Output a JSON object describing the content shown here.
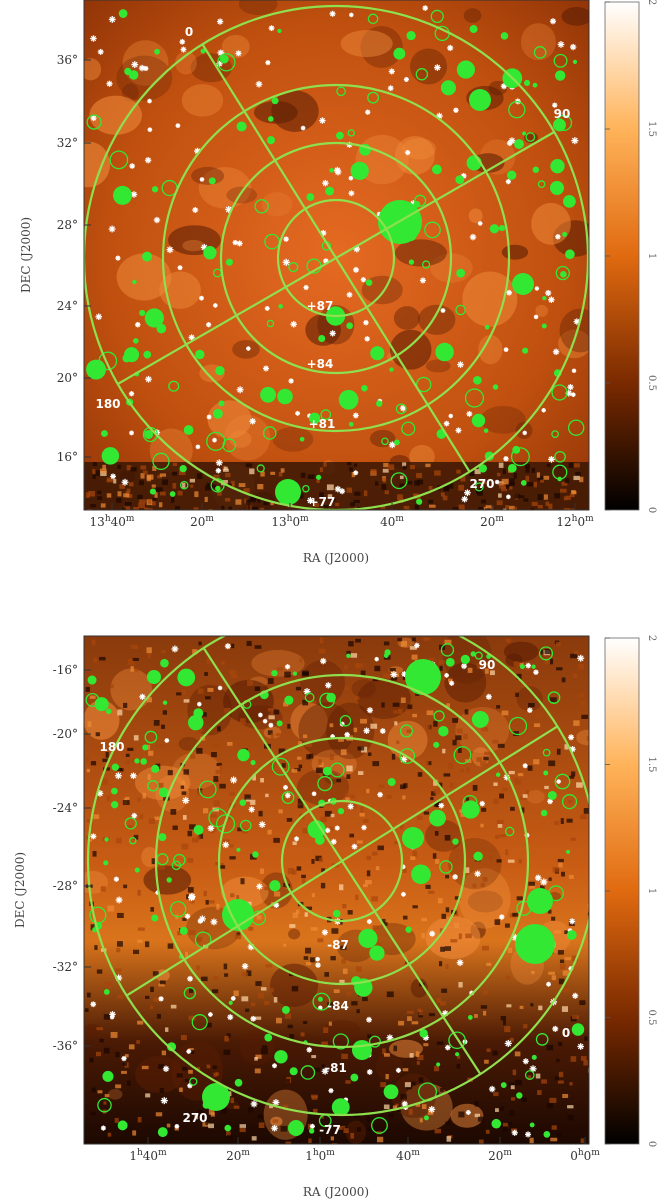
{
  "chart_data": [
    {
      "type": "heatmap",
      "xlabel": "RA (J2000)",
      "ylabel": "DEC (J2000)",
      "xticks": [
        "13h40m",
        "20m",
        "13h0m",
        "40m",
        "20m",
        "12h0m"
      ],
      "yticks": [
        "36°",
        "32°",
        "28°",
        "24°",
        "20°",
        "16°"
      ],
      "colorbar": {
        "ticks": [
          "0",
          "0.5",
          "1",
          "1.5",
          "2"
        ],
        "colormap": "black-orange-white"
      },
      "grid_annotations": {
        "latitudes": [
          "+87",
          "+84",
          "+81",
          "+77"
        ],
        "longitudes": [
          "0",
          "90",
          "180",
          "270"
        ]
      },
      "overlay": {
        "markers": [
          "white asterisks",
          "green filled circles",
          "green open circles"
        ],
        "grid_color": "#8ee04e"
      }
    },
    {
      "type": "heatmap",
      "xlabel": "RA (J2000)",
      "ylabel": "DEC (J2000)",
      "xticks": [
        "1h40m",
        "20m",
        "1h0m",
        "40m",
        "20m",
        "0h0m"
      ],
      "yticks": [
        "-16°",
        "-20°",
        "-24°",
        "-28°",
        "-32°",
        "-36°"
      ],
      "colorbar": {
        "ticks": [
          "0",
          "0.5",
          "1",
          "1.5",
          "2"
        ],
        "colormap": "black-orange-white"
      },
      "grid_annotations": {
        "latitudes": [
          "-87",
          "-84",
          "-81",
          "-77"
        ],
        "longitudes": [
          "90",
          "180",
          "0",
          "270"
        ]
      },
      "overlay": {
        "markers": [
          "white asterisks",
          "green filled circles",
          "green open circles"
        ],
        "grid_color": "#8ee04e"
      }
    }
  ],
  "colors": {
    "grid": "#8ee04e",
    "marker_green": "#33e833",
    "marker_white": "#ffffff",
    "map_base": "#c2520f"
  }
}
